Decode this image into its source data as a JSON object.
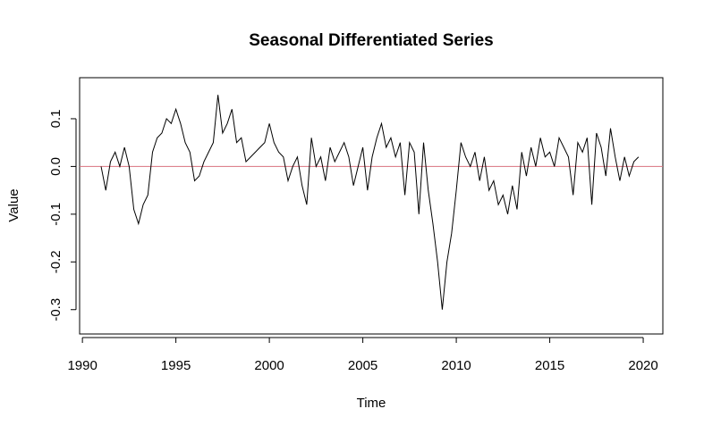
{
  "chart_data": {
    "type": "line",
    "title": "Seasonal Differentiated Series",
    "x_label": "Time",
    "y_label": "Value",
    "x": [
      1991.0,
      1991.25,
      1991.5,
      1991.75,
      1992.0,
      1992.25,
      1992.5,
      1992.75,
      1993.0,
      1993.25,
      1993.5,
      1993.75,
      1994.0,
      1994.25,
      1994.5,
      1994.75,
      1995.0,
      1995.25,
      1995.5,
      1995.75,
      1996.0,
      1996.25,
      1996.5,
      1996.75,
      1997.0,
      1997.25,
      1997.5,
      1997.75,
      1998.0,
      1998.25,
      1998.5,
      1998.75,
      1999.0,
      1999.25,
      1999.5,
      1999.75,
      2000.0,
      2000.25,
      2000.5,
      2000.75,
      2001.0,
      2001.25,
      2001.5,
      2001.75,
      2002.0,
      2002.25,
      2002.5,
      2002.75,
      2003.0,
      2003.25,
      2003.5,
      2003.75,
      2004.0,
      2004.25,
      2004.5,
      2004.75,
      2005.0,
      2005.25,
      2005.5,
      2005.75,
      2006.0,
      2006.25,
      2006.5,
      2006.75,
      2007.0,
      2007.25,
      2007.5,
      2007.75,
      2008.0,
      2008.25,
      2008.5,
      2008.75,
      2009.0,
      2009.25,
      2009.5,
      2009.75,
      2010.0,
      2010.25,
      2010.5,
      2010.75,
      2011.0,
      2011.25,
      2011.5,
      2011.75,
      2012.0,
      2012.25,
      2012.5,
      2012.75,
      2013.0,
      2013.25,
      2013.5,
      2013.75,
      2014.0,
      2014.25,
      2014.5,
      2014.75,
      2015.0,
      2015.25,
      2015.5,
      2015.75,
      2016.0,
      2016.25,
      2016.5,
      2016.75,
      2017.0,
      2017.25,
      2017.5,
      2017.75,
      2018.0,
      2018.25,
      2018.5,
      2018.75,
      2019.0,
      2019.25,
      2019.5,
      2019.75
    ],
    "series": [
      {
        "color": "#000000",
        "values": [
          0.0,
          -0.05,
          0.01,
          0.03,
          0.0,
          0.04,
          0.0,
          -0.09,
          -0.12,
          -0.08,
          -0.06,
          0.03,
          0.06,
          0.07,
          0.1,
          0.09,
          0.12,
          0.09,
          0.05,
          0.03,
          -0.03,
          -0.02,
          0.01,
          0.03,
          0.05,
          0.15,
          0.07,
          0.09,
          0.12,
          0.05,
          0.06,
          0.01,
          0.02,
          0.03,
          0.04,
          0.05,
          0.09,
          0.05,
          0.03,
          0.02,
          -0.03,
          0.0,
          0.02,
          -0.04,
          -0.08,
          0.06,
          0.0,
          0.02,
          -0.03,
          0.04,
          0.01,
          0.03,
          0.05,
          0.02,
          -0.04,
          0.0,
          0.04,
          -0.05,
          0.02,
          0.06,
          0.09,
          0.04,
          0.06,
          0.02,
          0.05,
          -0.06,
          0.05,
          0.03,
          -0.1,
          0.05,
          -0.05,
          -0.12,
          -0.2,
          -0.3,
          -0.2,
          -0.14,
          -0.05,
          0.05,
          0.02,
          0.0,
          0.03,
          -0.03,
          0.02,
          -0.05,
          -0.03,
          -0.08,
          -0.06,
          -0.1,
          -0.04,
          -0.09,
          0.03,
          -0.02,
          0.04,
          0.0,
          0.06,
          0.02,
          0.03,
          0.0,
          0.06,
          0.04,
          0.02,
          -0.06,
          0.05,
          0.03,
          0.06,
          -0.08,
          0.07,
          0.04,
          -0.02,
          0.08,
          0.02,
          -0.03,
          0.02,
          -0.02,
          0.01,
          0.02
        ]
      }
    ],
    "hline": 0,
    "hline_color": "#d9737f",
    "xlim": [
      1989.85,
      2021.05
    ],
    "ylim": [
      -0.351,
      0.186
    ],
    "xticks": [
      1990,
      1995,
      2000,
      2005,
      2010,
      2015,
      2020
    ],
    "yticks": [
      -0.3,
      -0.2,
      -0.1,
      {
        "value": 0,
        "label": "0.0"
      },
      0.1
    ]
  }
}
